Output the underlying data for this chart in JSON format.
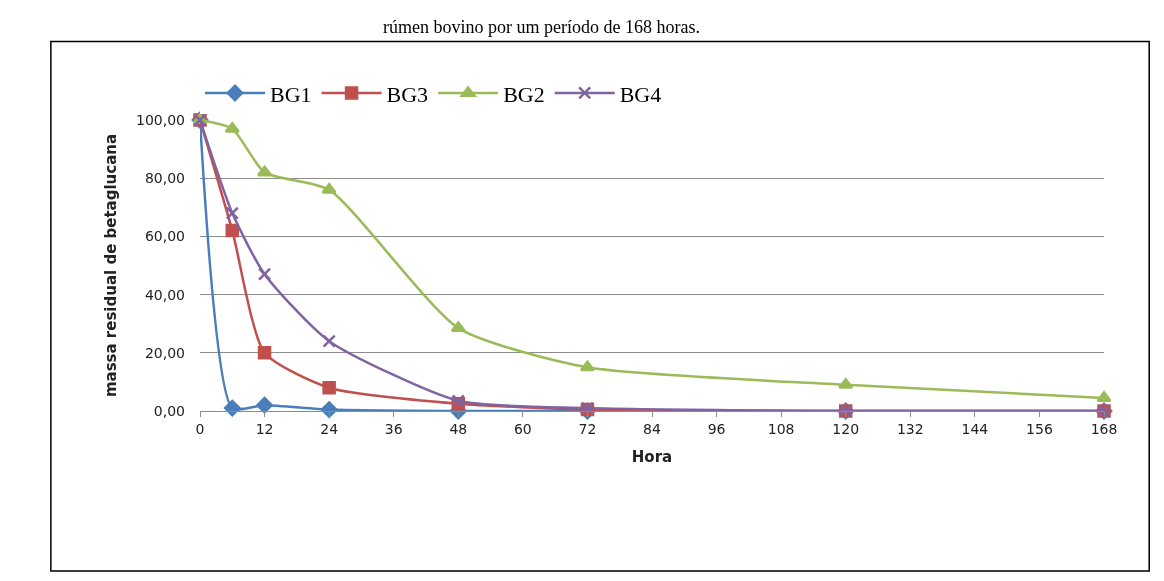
{
  "chart_data": {
    "type": "line",
    "xlabel": "Hora",
    "ylabel": "massa residual de betaglucana",
    "annotations": [
      "rúmen bovino por um período de 168 horas."
    ],
    "x": [
      0,
      6,
      12,
      24,
      48,
      72,
      120,
      168
    ],
    "series": [
      {
        "name": "BG1",
        "color": "#4a7ebb",
        "marker": "diamond",
        "values": [
          100,
          1,
          2,
          0.5,
          0,
          0,
          0,
          0
        ]
      },
      {
        "name": "BG3",
        "color": "#c0504d",
        "marker": "square",
        "values": [
          100,
          62,
          20,
          8,
          2.5,
          0.5,
          0,
          0
        ]
      },
      {
        "name": "BG2",
        "color": "#9bbb59",
        "marker": "triangle",
        "values": [
          100,
          97,
          82,
          76,
          28.5,
          15,
          9,
          4.5
        ]
      },
      {
        "name": "BG4",
        "color": "#8064a2",
        "marker": "cross",
        "values": [
          100,
          68,
          47,
          24,
          3.5,
          1,
          0,
          0
        ]
      }
    ],
    "xlim": [
      0,
      168
    ],
    "xticks": [
      0,
      12,
      24,
      36,
      48,
      60,
      72,
      84,
      96,
      108,
      120,
      132,
      144,
      156,
      168
    ],
    "ylim": [
      0,
      100
    ],
    "yticks": [
      {
        "value": 0,
        "label": "0,00"
      },
      {
        "value": 20,
        "label": "20,00"
      },
      {
        "value": 40,
        "label": "40,00"
      },
      {
        "value": 60,
        "label": "60,00"
      },
      {
        "value": 80,
        "label": "80,00"
      },
      {
        "value": 100,
        "label": "100,00"
      }
    ],
    "grid": "y",
    "legend": "top",
    "line_style": "solid"
  }
}
